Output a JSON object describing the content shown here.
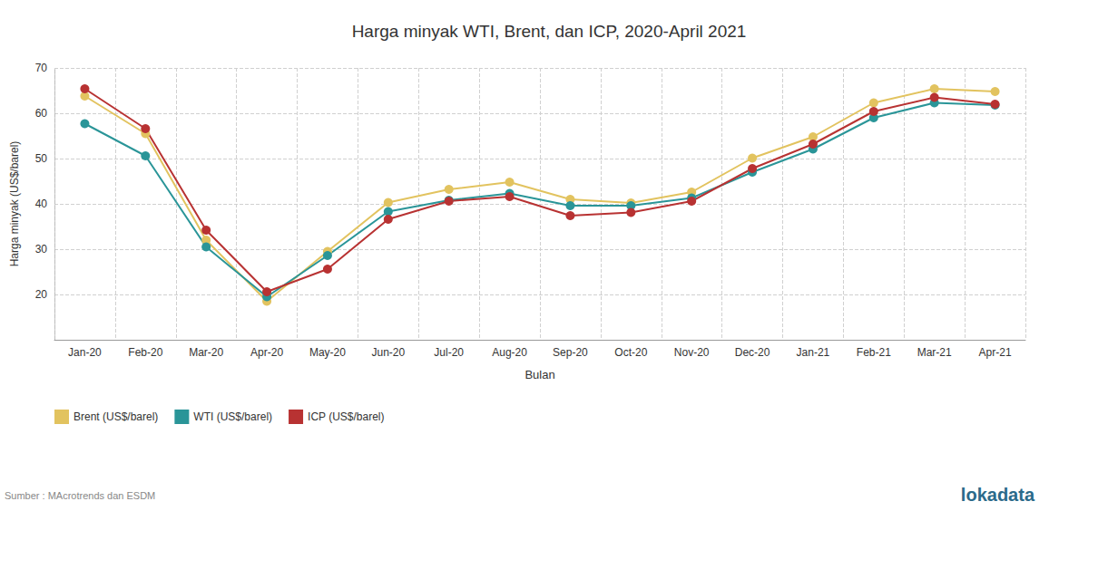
{
  "chart_data": {
    "type": "line",
    "title": "Harga minyak WTI, Brent, dan ICP, 2020-April 2021",
    "x_label": "Bulan",
    "y_label": "Harga minyak (US$/barel)",
    "categories": [
      "Jan-20",
      "Feb-20",
      "Mar-20",
      "Apr-20",
      "May-20",
      "Jun-20",
      "Jul-20",
      "Aug-20",
      "Sep-20",
      "Oct-20",
      "Nov-20",
      "Dec-20",
      "Jan-21",
      "Feb-21",
      "Mar-21",
      "Apr-21"
    ],
    "series": [
      {
        "name": "Brent (US$/barel)",
        "color": "#e2c35f",
        "values": [
          63.8,
          55.5,
          32.0,
          18.5,
          29.5,
          40.3,
          43.2,
          44.8,
          41.0,
          40.2,
          42.6,
          50.1,
          54.8,
          62.3,
          65.4,
          64.8
        ]
      },
      {
        "name": "WTI (US$/barel)",
        "color": "#2a9598",
        "values": [
          57.7,
          50.6,
          30.5,
          19.5,
          28.6,
          38.3,
          40.8,
          42.3,
          39.6,
          39.6,
          41.3,
          47.0,
          52.1,
          59.0,
          62.3,
          61.8
        ]
      },
      {
        "name": "ICP (US$/barel)",
        "color": "#b83232",
        "values": [
          65.4,
          56.6,
          34.2,
          20.6,
          25.6,
          36.6,
          40.6,
          41.6,
          37.4,
          38.1,
          40.6,
          47.8,
          53.2,
          60.4,
          63.5,
          62.0
        ]
      }
    ],
    "ylim": [
      10,
      70
    ],
    "yticks": [
      20,
      30,
      40,
      50,
      60,
      70
    ],
    "grid": true,
    "legend": "bottom-left",
    "marker": "circle",
    "line_style": "solid",
    "source": "Sumber : MAcrotrends dan ESDM",
    "logo": "lokadata"
  }
}
